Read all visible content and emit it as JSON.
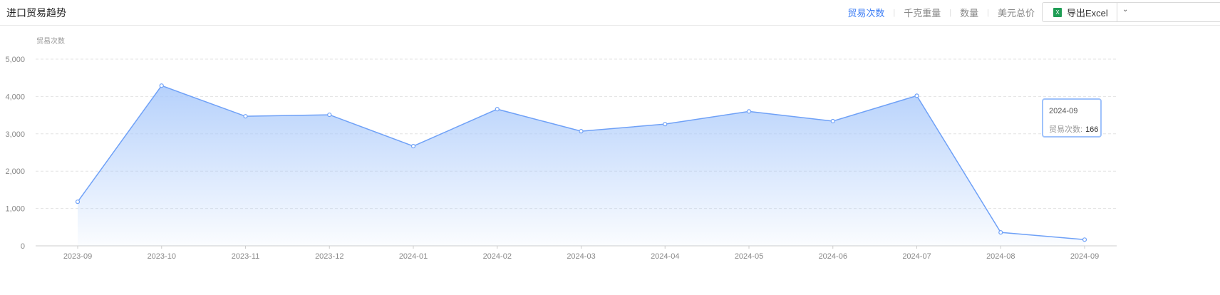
{
  "header": {
    "title": "进口贸易趋势",
    "tabs": [
      {
        "label": "贸易次数",
        "active": true
      },
      {
        "label": "千克重量"
      },
      {
        "label": "数量"
      },
      {
        "label": "美元总价"
      }
    ],
    "export_label": "导出Excel",
    "export_icon": "excel-icon",
    "dropdown_icon": "chevron-down-icon"
  },
  "tooltip": {
    "date": "2024-09",
    "label": "贸易次数:",
    "value": "166"
  },
  "chart_data": {
    "type": "area",
    "ylabel": "贸易次数",
    "categories": [
      "2023-09",
      "2023-10",
      "2023-11",
      "2023-12",
      "2024-01",
      "2024-02",
      "2024-03",
      "2024-04",
      "2024-05",
      "2024-06",
      "2024-07",
      "2024-08",
      "2024-09"
    ],
    "values": [
      1180,
      4290,
      3470,
      3510,
      2670,
      3660,
      3070,
      3260,
      3600,
      3340,
      4020,
      360,
      166
    ],
    "ylim": [
      0,
      5000
    ],
    "yticks": [
      "0",
      "1,000",
      "2,000",
      "3,000",
      "4,000",
      "5,000"
    ],
    "grid": true,
    "color": "#6fa1f7"
  }
}
